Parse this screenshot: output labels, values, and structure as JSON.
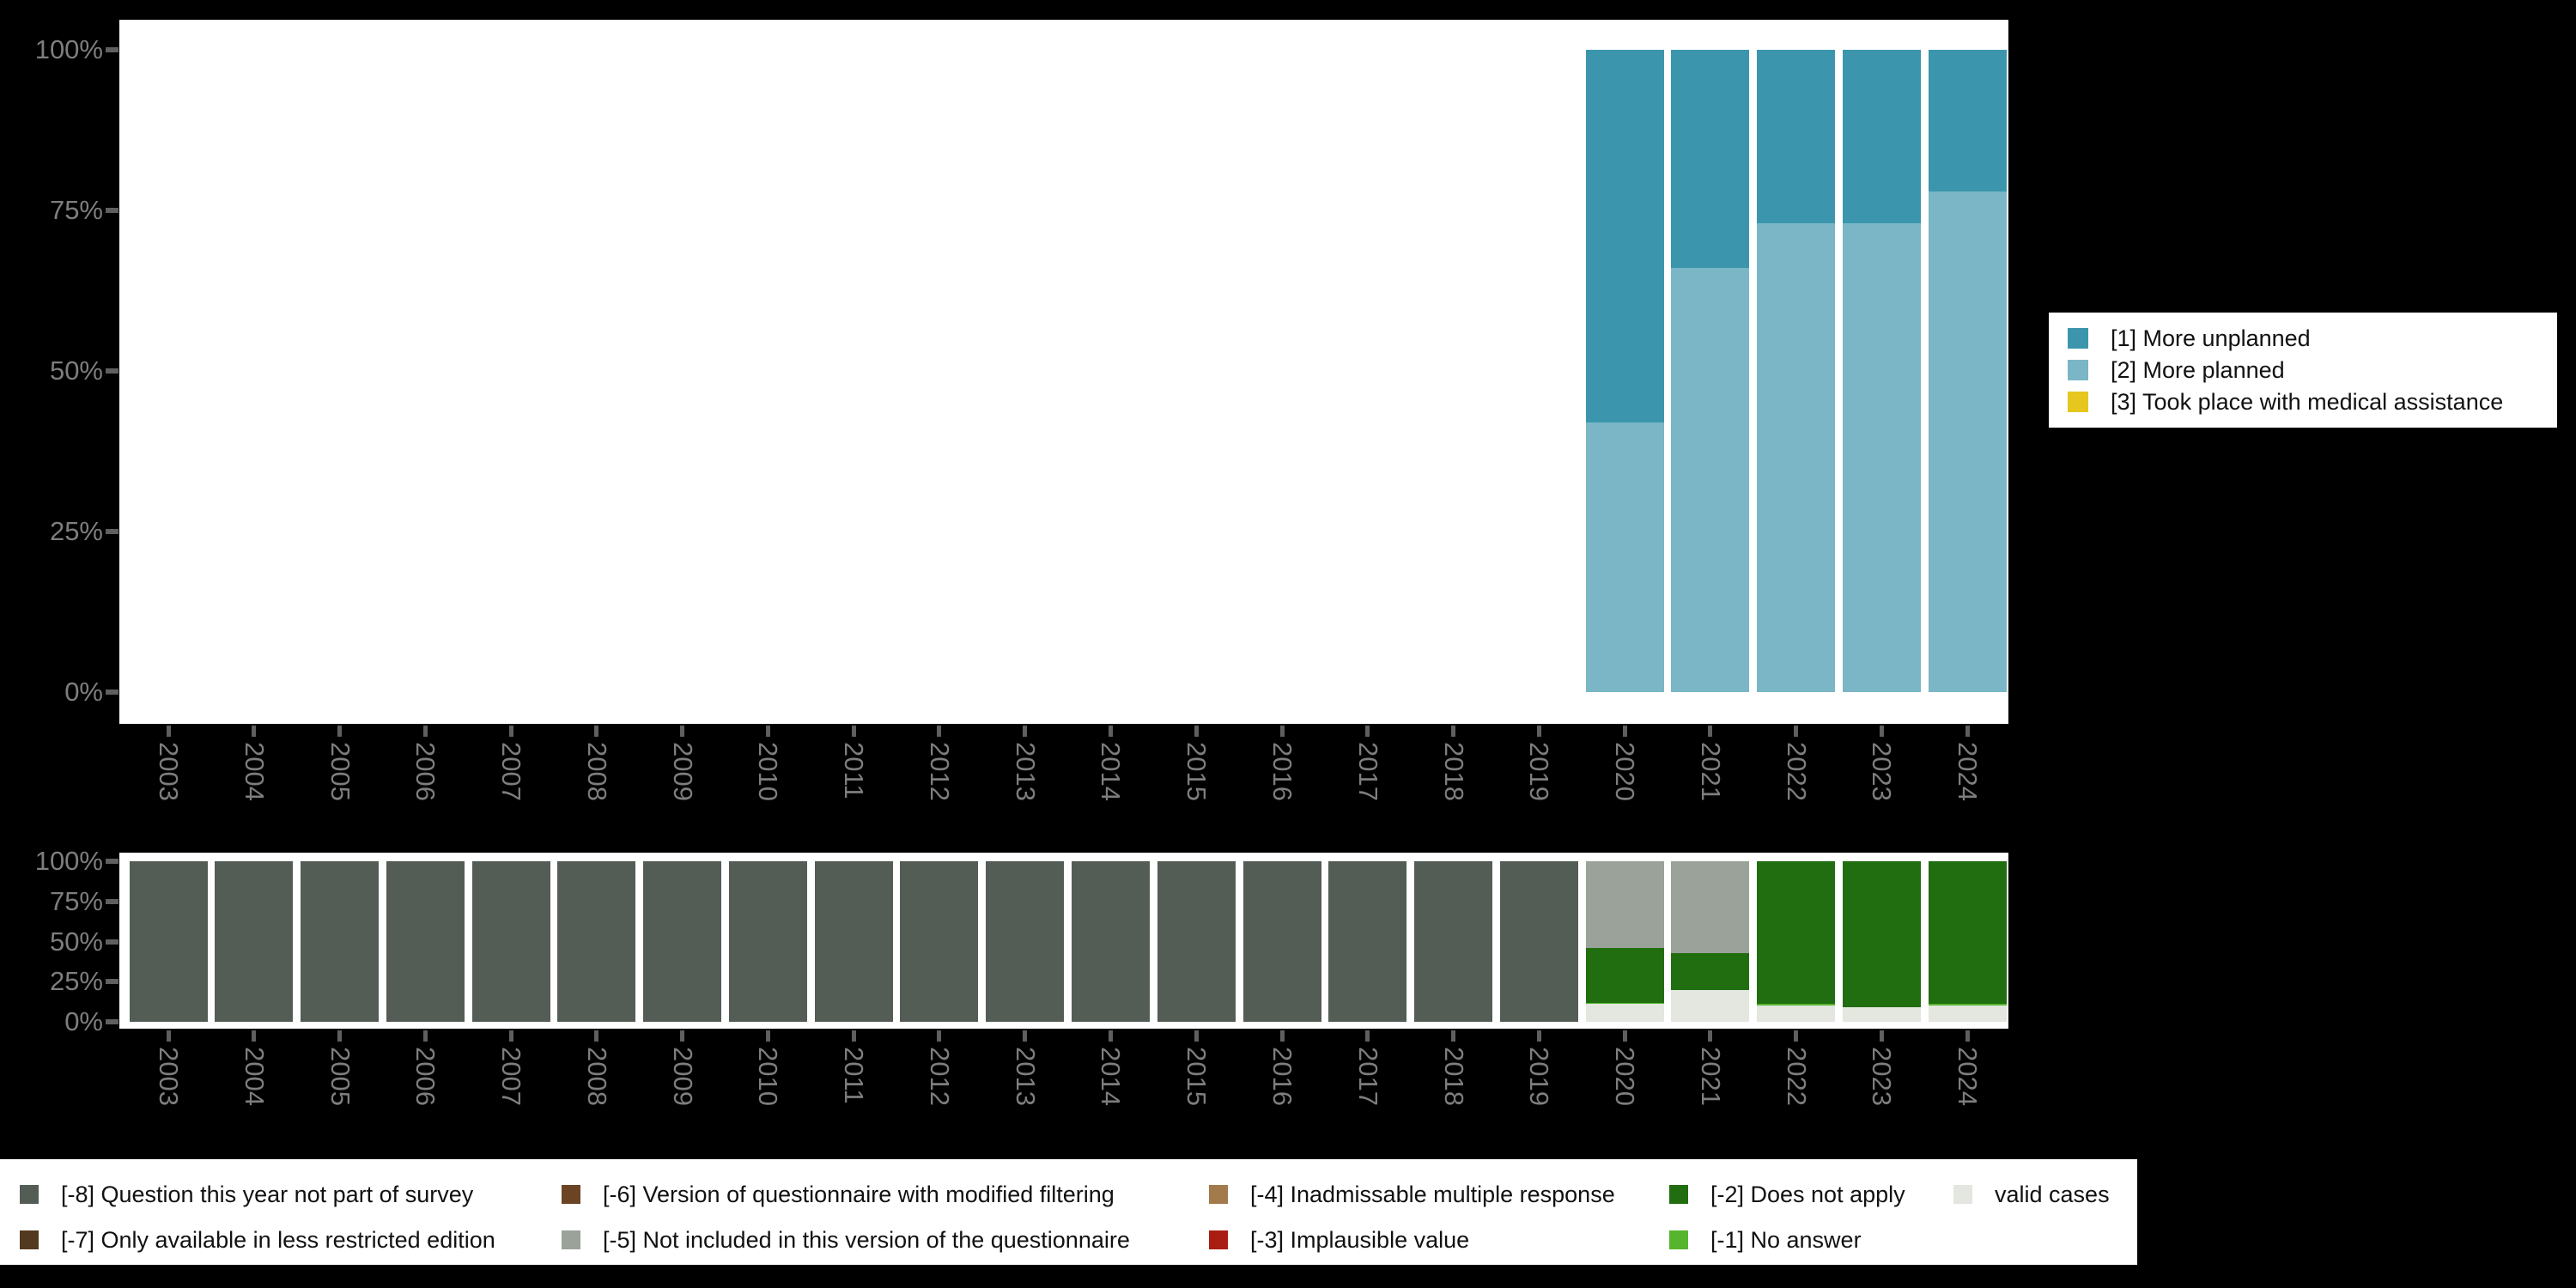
{
  "page": {
    "background": "#000000",
    "panel_background": "#ffffff"
  },
  "axis": {
    "label_color": "#7e7e7e",
    "tick_color": "#5f5f5f",
    "yticks": [
      "0%",
      "25%",
      "50%",
      "75%",
      "100%"
    ]
  },
  "chart_data": [
    {
      "type": "bar",
      "stacked": true,
      "title": "",
      "xlabel": "",
      "ylabel": "",
      "ylim": [
        0,
        100
      ],
      "grid": false,
      "legend_position": "right",
      "categories": [
        "2003",
        "2004",
        "2005",
        "2006",
        "2007",
        "2008",
        "2009",
        "2010",
        "2011",
        "2012",
        "2013",
        "2014",
        "2015",
        "2016",
        "2017",
        "2018",
        "2019",
        "2020",
        "2021",
        "2022",
        "2023",
        "2024"
      ],
      "yticks": [
        "0%",
        "25%",
        "50%",
        "75%",
        "100%"
      ],
      "series": [
        {
          "name": "[1] More unplanned",
          "color": "#3b96ad",
          "values": [
            0,
            0,
            0,
            0,
            0,
            0,
            0,
            0,
            0,
            0,
            0,
            0,
            0,
            0,
            0,
            0,
            0,
            58,
            34,
            27,
            27,
            22
          ]
        },
        {
          "name": "[2] More planned",
          "color": "#7ab6c6",
          "values": [
            0,
            0,
            0,
            0,
            0,
            0,
            0,
            0,
            0,
            0,
            0,
            0,
            0,
            0,
            0,
            0,
            0,
            42,
            66,
            73,
            73,
            78
          ]
        },
        {
          "name": "[3] Took place with medical assistance",
          "color": "#e6c71f",
          "values": [
            0,
            0,
            0,
            0,
            0,
            0,
            0,
            0,
            0,
            0,
            0,
            0,
            0,
            0,
            0,
            0,
            0,
            0,
            0,
            0,
            0,
            0
          ]
        }
      ]
    },
    {
      "type": "bar",
      "stacked": true,
      "title": "",
      "xlabel": "",
      "ylabel": "",
      "ylim": [
        0,
        100
      ],
      "grid": false,
      "legend_position": "bottom",
      "categories": [
        "2003",
        "2004",
        "2005",
        "2006",
        "2007",
        "2008",
        "2009",
        "2010",
        "2011",
        "2012",
        "2013",
        "2014",
        "2015",
        "2016",
        "2017",
        "2018",
        "2019",
        "2020",
        "2021",
        "2022",
        "2023",
        "2024"
      ],
      "yticks": [
        "0%",
        "25%",
        "50%",
        "75%",
        "100%"
      ],
      "series": [
        {
          "name": "[-8] Question this year not part of survey",
          "color": "#545d55",
          "values": [
            100,
            100,
            100,
            100,
            100,
            100,
            100,
            100,
            100,
            100,
            100,
            100,
            100,
            100,
            100,
            100,
            100,
            0,
            0,
            0,
            0,
            0
          ]
        },
        {
          "name": "[-7] Only available in less restricted edition",
          "color": "#533920",
          "values": [
            0,
            0,
            0,
            0,
            0,
            0,
            0,
            0,
            0,
            0,
            0,
            0,
            0,
            0,
            0,
            0,
            0,
            0,
            0,
            0,
            0,
            0
          ]
        },
        {
          "name": "[-6] Version of questionnaire with modified filtering",
          "color": "#6b4423",
          "values": [
            0,
            0,
            0,
            0,
            0,
            0,
            0,
            0,
            0,
            0,
            0,
            0,
            0,
            0,
            0,
            0,
            0,
            0,
            0,
            0,
            0,
            0
          ]
        },
        {
          "name": "[-5] Not included in this version of the questionnaire",
          "color": "#9aa29a",
          "values": [
            0,
            0,
            0,
            0,
            0,
            0,
            0,
            0,
            0,
            0,
            0,
            0,
            0,
            0,
            0,
            0,
            0,
            54,
            57,
            0,
            0,
            0
          ]
        },
        {
          "name": "[-4] Inadmissable multiple response",
          "color": "#a37a4b",
          "values": [
            0,
            0,
            0,
            0,
            0,
            0,
            0,
            0,
            0,
            0,
            0,
            0,
            0,
            0,
            0,
            0,
            0,
            0,
            0,
            0,
            0,
            0
          ]
        },
        {
          "name": "[-3] Implausible value",
          "color": "#aa1d12",
          "values": [
            0,
            0,
            0,
            0,
            0,
            0,
            0,
            0,
            0,
            0,
            0,
            0,
            0,
            0,
            0,
            0,
            0,
            0,
            0,
            0,
            0,
            0
          ]
        },
        {
          "name": "[-2] Does not apply",
          "color": "#216e10",
          "values": [
            0,
            0,
            0,
            0,
            0,
            0,
            0,
            0,
            0,
            0,
            0,
            0,
            0,
            0,
            0,
            0,
            0,
            34,
            23,
            89,
            91,
            89
          ]
        },
        {
          "name": "[-1] No answer",
          "color": "#57b42d",
          "values": [
            0,
            0,
            0,
            0,
            0,
            0,
            0,
            0,
            0,
            0,
            0,
            0,
            0,
            0,
            0,
            0,
            0,
            1,
            0,
            1,
            0,
            1
          ]
        },
        {
          "name": "valid cases",
          "color": "#e3e7e0",
          "values": [
            0,
            0,
            0,
            0,
            0,
            0,
            0,
            0,
            0,
            0,
            0,
            0,
            0,
            0,
            0,
            0,
            0,
            11,
            20,
            10,
            9,
            10
          ]
        }
      ]
    }
  ]
}
